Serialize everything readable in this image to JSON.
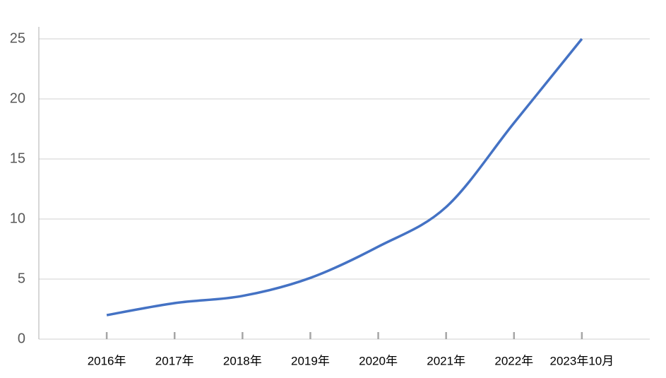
{
  "chart_data": {
    "type": "line",
    "categories": [
      "2016年",
      "2017年",
      "2018年",
      "2019年",
      "2020年",
      "2021年",
      "2022年",
      "2023年10月"
    ],
    "series": [
      {
        "name": "",
        "color": "#4472c4",
        "values": [
          2,
          3,
          3.6,
          5.1,
          7.7,
          11,
          18,
          25
        ]
      }
    ],
    "ylim": [
      0,
      25
    ],
    "yticks": [
      0,
      5,
      10,
      15,
      20,
      25
    ],
    "grid": true
  }
}
